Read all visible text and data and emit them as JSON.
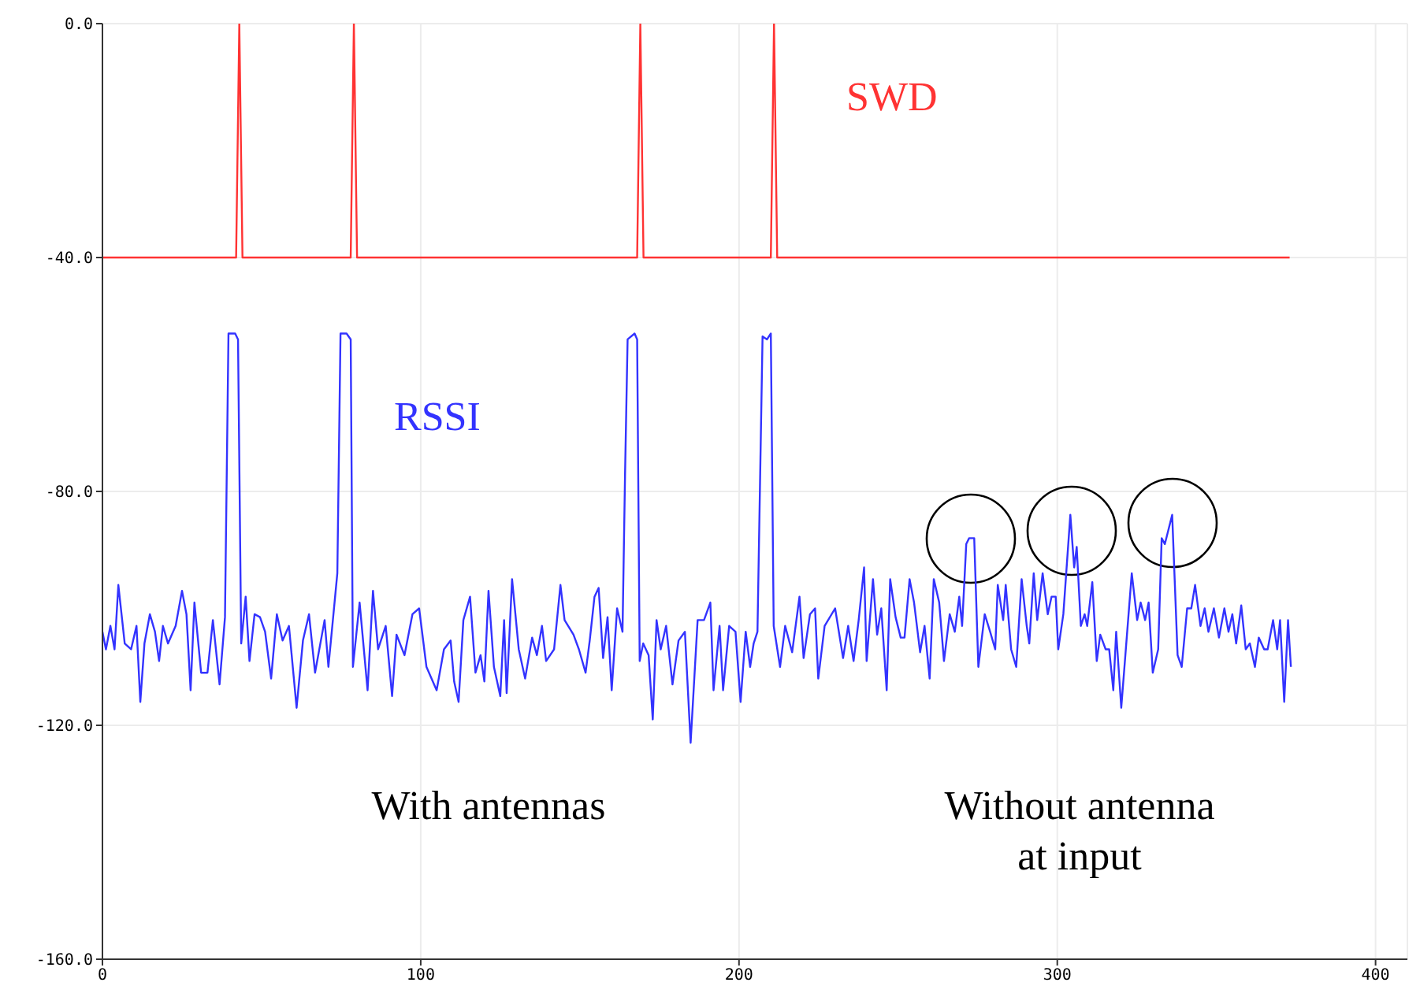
{
  "chart_data": {
    "type": "line",
    "xlim": [
      0,
      410
    ],
    "ylim": [
      -160,
      0
    ],
    "xticks": [
      0,
      100,
      200,
      300,
      400
    ],
    "yticks": [
      {
        "value": 0,
        "label": "0.0"
      },
      {
        "value": -40,
        "label": "-40.0"
      },
      {
        "value": -80,
        "label": "-80.0"
      },
      {
        "value": -120,
        "label": "-120.0"
      },
      {
        "value": -160,
        "label": "-160.0"
      }
    ],
    "grid": true,
    "marker": "none",
    "line_style": "solid",
    "annotations": [
      "With antennas",
      "Without antenna at input"
    ],
    "series": [
      {
        "name": "SWD",
        "color": "#ff3333",
        "x": [
          0,
          42,
          43,
          44,
          78,
          79,
          80,
          168,
          169,
          170,
          210,
          211,
          212,
          373
        ],
        "values": [
          -40,
          -40,
          0,
          -40,
          -40,
          0,
          -40,
          -40,
          0,
          -40,
          -40,
          0,
          -40,
          -40
        ]
      },
      {
        "name": "RSSI",
        "color": "#3333ff",
        "x": [
          0,
          1.1,
          2.5,
          3.8,
          5,
          7,
          9,
          10.7,
          11.9,
          13.2,
          14.9,
          16.5,
          17.8,
          19,
          20.6,
          23,
          25,
          26.4,
          27.7,
          28.9,
          31,
          33,
          34.7,
          36.8,
          38.5,
          39.6,
          41.7,
          42.6,
          43.6,
          45,
          46.2,
          47.8,
          49.5,
          51.1,
          53,
          54.8,
          56.6,
          58.6,
          61,
          63,
          64.9,
          66.8,
          69.8,
          71,
          73.8,
          74.8,
          76.7,
          78,
          78.7,
          80.8,
          83.3,
          85,
          86.6,
          89,
          91,
          92.4,
          94.9,
          97.4,
          99.5,
          101.8,
          105,
          107.3,
          109.4,
          110.5,
          111.9,
          113.4,
          115.5,
          117.2,
          118.8,
          120,
          121.3,
          123,
          125,
          126.2,
          127,
          128.7,
          130.8,
          132.8,
          135,
          136.5,
          138.1,
          139.4,
          141.9,
          143.9,
          145.2,
          148,
          149.7,
          151.8,
          153.1,
          154.6,
          155.9,
          157.3,
          158.7,
          160,
          161.7,
          163.4,
          164.2,
          165,
          167.2,
          168,
          168.8,
          169.9,
          171.6,
          172.9,
          174.1,
          175.4,
          177.1,
          179.1,
          181,
          183,
          184.8,
          187,
          189,
          191,
          192,
          193.9,
          195,
          196.9,
          198.9,
          200.5,
          202.1,
          203.5,
          204.6,
          205.8,
          207.4,
          208.8,
          210,
          210.9,
          212.9,
          214.5,
          216.7,
          219,
          220.3,
          222.3,
          223.9,
          224.9,
          226.9,
          230.2,
          232.7,
          234.3,
          236,
          237.6,
          239.3,
          240.1,
          242.1,
          243.4,
          244.7,
          246.4,
          247.5,
          249.2,
          250.8,
          252,
          253.6,
          255,
          256.9,
          258.3,
          259.9,
          261.2,
          262.9,
          264.4,
          266.2,
          267.8,
          269.2,
          270.1,
          271.4,
          272.3,
          273.9,
          275.2,
          277.2,
          278.9,
          280.5,
          281.3,
          283,
          283.8,
          285.5,
          287.1,
          288.8,
          290.4,
          291.2,
          292.6,
          293.7,
          295.4,
          297,
          298.2,
          299.5,
          300.3,
          301.9,
          304.1,
          305.3,
          306.1,
          307.4,
          308.6,
          309.4,
          311,
          312.4,
          313.5,
          315.2,
          316.3,
          317.6,
          318.5,
          320.1,
          323.4,
          325.1,
          326.2,
          327.6,
          328.7,
          330,
          331.7,
          332.8,
          333.8,
          336.1,
          337.8,
          339.1,
          340.8,
          342.1,
          343.3,
          345,
          346.3,
          347.5,
          349.2,
          350.8,
          352.5,
          353.8,
          355,
          356.2,
          357.8,
          359.2,
          360.5,
          362.1,
          363.3,
          365,
          366.1,
          367.8,
          369.1,
          370,
          371.3,
          372.5,
          373.4
        ],
        "values": [
          -104,
          -107,
          -103,
          -107,
          -96,
          -106,
          -107,
          -103,
          -116,
          -106,
          -101,
          -104,
          -109,
          -103,
          -106,
          -103,
          -97,
          -101,
          -114,
          -99,
          -111,
          -111,
          -102,
          -113,
          -101.5,
          -53,
          -53,
          -54,
          -106,
          -98,
          -109,
          -101,
          -101.5,
          -104,
          -112,
          -101,
          -105.5,
          -103,
          -117,
          -105.5,
          -101,
          -111,
          -102,
          -110,
          -94,
          -53,
          -53,
          -54,
          -110,
          -99,
          -114,
          -97,
          -107,
          -103,
          -115,
          -104.5,
          -108,
          -101,
          -100,
          -110,
          -114,
          -107,
          -105.5,
          -112.5,
          -116,
          -102,
          -98,
          -111,
          -108,
          -112.5,
          -97,
          -110,
          -115,
          -102,
          -114.5,
          -95,
          -107,
          -112,
          -105,
          -108,
          -103,
          -109,
          -107,
          -96,
          -102,
          -104.5,
          -107,
          -111,
          -105.5,
          -98,
          -96.5,
          -108.5,
          -101.5,
          -114,
          -100,
          -104,
          -77,
          -54,
          -53,
          -54,
          -109,
          -106,
          -108,
          -119,
          -102,
          -107,
          -103,
          -113,
          -105.5,
          -104,
          -123,
          -102,
          -102,
          -99,
          -114,
          -103,
          -114,
          -103,
          -104,
          -116,
          -104,
          -110,
          -106,
          -104,
          -53.5,
          -54,
          -53,
          -103,
          -110,
          -103,
          -107.5,
          -98,
          -108.5,
          -101,
          -100,
          -112,
          -103,
          -100,
          -108.5,
          -103,
          -109,
          -102,
          -93,
          -109,
          -95,
          -104.5,
          -100,
          -114,
          -95,
          -101.5,
          -105,
          -105,
          -95,
          -99,
          -107.5,
          -103,
          -112,
          -95,
          -99,
          -109,
          -101,
          -104,
          -98,
          -103,
          -89,
          -88,
          -88,
          -110,
          -101,
          -104,
          -107,
          -96,
          -102,
          -96,
          -107,
          -110,
          -95,
          -103,
          -106,
          -94,
          -102,
          -94,
          -101,
          -98,
          -98,
          -107,
          -101,
          -84,
          -93,
          -89.5,
          -103,
          -101,
          -103,
          -95.5,
          -109,
          -104.5,
          -107,
          -107,
          -114,
          -104,
          -117,
          -94,
          -102,
          -99,
          -102,
          -99,
          -111,
          -107,
          -88,
          -89,
          -84,
          -108,
          -110,
          -100,
          -100,
          -96,
          -103,
          -100,
          -104,
          -100,
          -105,
          -100,
          -104,
          -101,
          -106,
          -99.5,
          -107,
          -106,
          -110,
          -105,
          -107,
          -107,
          -102,
          -107,
          -102,
          -116,
          -102,
          -110
        ]
      }
    ]
  }
}
